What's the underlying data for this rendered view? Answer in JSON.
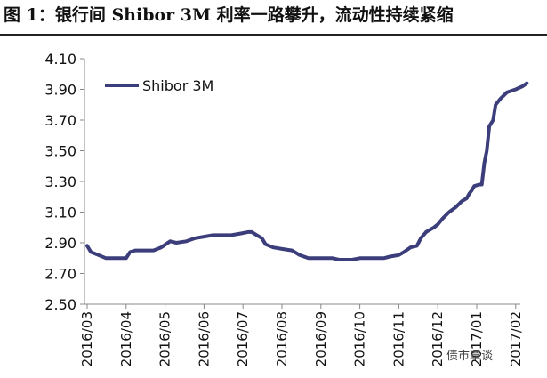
{
  "figure": {
    "title": "图 1：银行间 Shibor 3M 利率一路攀升，流动性持续紧缩"
  },
  "watermark": "债市覃谈",
  "colors": {
    "series": "#3b3e7a",
    "axis": "#888888",
    "text": "#111111"
  },
  "chart_data": {
    "type": "line",
    "title": "",
    "xlabel": "",
    "ylabel": "",
    "ylim": [
      2.5,
      4.1
    ],
    "yticks": [
      "4.10",
      "3.90",
      "3.70",
      "3.50",
      "3.30",
      "3.10",
      "2.90",
      "2.70",
      "2.50"
    ],
    "xticks": [
      "2016/03",
      "2016/04",
      "2016/05",
      "2016/06",
      "2016/07",
      "2016/08",
      "2016/09",
      "2016/10",
      "2016/11",
      "2016/12",
      "2017/01",
      "2017/02"
    ],
    "grid": false,
    "legend": {
      "position": "top-left"
    },
    "series": [
      {
        "name": "Shibor 3M",
        "color": "#3b3e7a",
        "points": [
          [
            "2016-03-01",
            2.88
          ],
          [
            "2016-03-04",
            2.84
          ],
          [
            "2016-03-10",
            2.82
          ],
          [
            "2016-03-16",
            2.8
          ],
          [
            "2016-03-24",
            2.8
          ],
          [
            "2016-04-01",
            2.8
          ],
          [
            "2016-04-04",
            2.84
          ],
          [
            "2016-04-08",
            2.85
          ],
          [
            "2016-04-15",
            2.85
          ],
          [
            "2016-04-22",
            2.85
          ],
          [
            "2016-04-28",
            2.87
          ],
          [
            "2016-05-05",
            2.91
          ],
          [
            "2016-05-10",
            2.9
          ],
          [
            "2016-05-18",
            2.91
          ],
          [
            "2016-05-25",
            2.93
          ],
          [
            "2016-06-01",
            2.94
          ],
          [
            "2016-06-08",
            2.95
          ],
          [
            "2016-06-15",
            2.95
          ],
          [
            "2016-06-22",
            2.95
          ],
          [
            "2016-06-29",
            2.96
          ],
          [
            "2016-07-05",
            2.97
          ],
          [
            "2016-07-08",
            2.97
          ],
          [
            "2016-07-12",
            2.95
          ],
          [
            "2016-07-16",
            2.93
          ],
          [
            "2016-07-19",
            2.89
          ],
          [
            "2016-07-25",
            2.87
          ],
          [
            "2016-08-01",
            2.86
          ],
          [
            "2016-08-09",
            2.85
          ],
          [
            "2016-08-15",
            2.82
          ],
          [
            "2016-08-22",
            2.8
          ],
          [
            "2016-09-01",
            2.8
          ],
          [
            "2016-09-10",
            2.8
          ],
          [
            "2016-09-15",
            2.79
          ],
          [
            "2016-09-25",
            2.79
          ],
          [
            "2016-10-01",
            2.8
          ],
          [
            "2016-10-10",
            2.8
          ],
          [
            "2016-10-20",
            2.8
          ],
          [
            "2016-10-25",
            2.81
          ],
          [
            "2016-11-01",
            2.82
          ],
          [
            "2016-11-05",
            2.84
          ],
          [
            "2016-11-10",
            2.87
          ],
          [
            "2016-11-15",
            2.88
          ],
          [
            "2016-11-18",
            2.93
          ],
          [
            "2016-11-22",
            2.97
          ],
          [
            "2016-11-28",
            3.0
          ],
          [
            "2016-12-01",
            3.02
          ],
          [
            "2016-12-05",
            3.06
          ],
          [
            "2016-12-10",
            3.1
          ],
          [
            "2016-12-15",
            3.13
          ],
          [
            "2016-12-20",
            3.17
          ],
          [
            "2016-12-24",
            3.19
          ],
          [
            "2016-12-26",
            3.22
          ],
          [
            "2016-12-28",
            3.24
          ],
          [
            "2016-12-30",
            3.27
          ],
          [
            "2017-01-03",
            3.28
          ],
          [
            "2017-01-05",
            3.28
          ],
          [
            "2017-01-07",
            3.42
          ],
          [
            "2017-01-09",
            3.5
          ],
          [
            "2017-01-11",
            3.66
          ],
          [
            "2017-01-14",
            3.7
          ],
          [
            "2017-01-16",
            3.8
          ],
          [
            "2017-01-20",
            3.84
          ],
          [
            "2017-01-25",
            3.88
          ],
          [
            "2017-02-01",
            3.9
          ],
          [
            "2017-02-06",
            3.92
          ],
          [
            "2017-02-09",
            3.94
          ]
        ]
      }
    ]
  }
}
